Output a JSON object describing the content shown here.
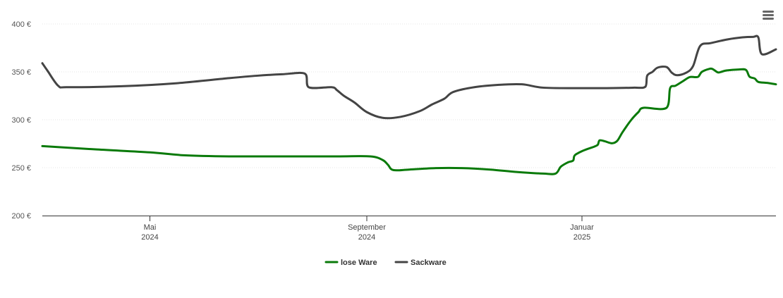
{
  "menu_icon": "hamburger-menu-icon",
  "chart_data": {
    "type": "line",
    "title": "",
    "xlabel": "",
    "ylabel": "",
    "currency": "€",
    "ylim": [
      200,
      400
    ],
    "yticks": [
      200,
      250,
      300,
      350,
      400
    ],
    "ytick_labels": [
      "200 €",
      "250 €",
      "300 €",
      "350 €",
      "400 €"
    ],
    "xlim": [
      "2024-03-01",
      "2025-04-21"
    ],
    "xticks": [
      {
        "date": "2024-05-01",
        "month": "Mai",
        "year": "2024"
      },
      {
        "date": "2024-09-01",
        "month": "September",
        "year": "2024"
      },
      {
        "date": "2025-01-01",
        "month": "Januar",
        "year": "2025"
      }
    ],
    "grid": true,
    "legend_position": "bottom",
    "series": [
      {
        "name": "lose Ware",
        "color": "#0a7a0a",
        "points": [
          [
            "2024-03-01",
            272.5
          ],
          [
            "2024-04-01",
            269
          ],
          [
            "2024-05-01",
            266
          ],
          [
            "2024-05-20",
            263
          ],
          [
            "2024-06-15",
            261.8
          ],
          [
            "2024-07-15",
            261.8
          ],
          [
            "2024-08-15",
            261.8
          ],
          [
            "2024-09-03",
            261.8
          ],
          [
            "2024-09-10",
            258
          ],
          [
            "2024-09-13",
            253
          ],
          [
            "2024-09-16",
            247.5
          ],
          [
            "2024-09-25",
            248
          ],
          [
            "2024-10-10",
            249.5
          ],
          [
            "2024-10-25",
            249.5
          ],
          [
            "2024-11-10",
            248
          ],
          [
            "2024-11-25",
            245.5
          ],
          [
            "2024-12-10",
            243.8
          ],
          [
            "2024-12-17",
            243.8
          ],
          [
            "2024-12-20",
            251
          ],
          [
            "2024-12-24",
            255.5
          ],
          [
            "2024-12-27",
            257.5
          ],
          [
            "2024-12-28",
            263
          ],
          [
            "2025-01-02",
            268
          ],
          [
            "2025-01-08",
            272
          ],
          [
            "2025-01-10",
            274
          ],
          [
            "2025-01-11",
            278.5
          ],
          [
            "2025-01-14",
            277.5
          ],
          [
            "2025-01-18",
            275.5
          ],
          [
            "2025-01-21",
            278
          ],
          [
            "2025-01-24",
            287
          ],
          [
            "2025-01-29",
            300
          ],
          [
            "2025-02-02",
            308
          ],
          [
            "2025-02-05",
            312.5
          ],
          [
            "2025-02-18",
            312.5
          ],
          [
            "2025-02-20",
            333
          ],
          [
            "2025-02-23",
            335.5
          ],
          [
            "2025-02-27",
            340
          ],
          [
            "2025-03-03",
            344.5
          ],
          [
            "2025-03-06",
            344.5
          ],
          [
            "2025-03-08",
            345
          ],
          [
            "2025-03-10",
            350
          ],
          [
            "2025-03-14",
            353
          ],
          [
            "2025-03-16",
            353
          ],
          [
            "2025-03-19",
            349.5
          ],
          [
            "2025-03-21",
            350
          ],
          [
            "2025-03-24",
            351.5
          ],
          [
            "2025-03-31",
            352.5
          ],
          [
            "2025-04-04",
            352
          ],
          [
            "2025-04-06",
            345
          ],
          [
            "2025-04-09",
            343
          ],
          [
            "2025-04-11",
            339.5
          ],
          [
            "2025-04-16",
            338.5
          ],
          [
            "2025-04-21",
            337
          ]
        ]
      },
      {
        "name": "Sackware",
        "color": "#444444",
        "points": [
          [
            "2024-03-01",
            359
          ],
          [
            "2024-03-04",
            351
          ],
          [
            "2024-03-10",
            335.5
          ],
          [
            "2024-03-15",
            334
          ],
          [
            "2024-04-15",
            335
          ],
          [
            "2024-05-15",
            338
          ],
          [
            "2024-06-15",
            343.5
          ],
          [
            "2024-07-01",
            346
          ],
          [
            "2024-07-15",
            347.5
          ],
          [
            "2024-07-28",
            348
          ],
          [
            "2024-07-30",
            334
          ],
          [
            "2024-08-12",
            334
          ],
          [
            "2024-08-15",
            331
          ],
          [
            "2024-08-19",
            325
          ],
          [
            "2024-08-25",
            318
          ],
          [
            "2024-09-01",
            308
          ],
          [
            "2024-09-10",
            302
          ],
          [
            "2024-09-20",
            303
          ],
          [
            "2024-10-01",
            309
          ],
          [
            "2024-10-08",
            316
          ],
          [
            "2024-10-15",
            322
          ],
          [
            "2024-10-20",
            329
          ],
          [
            "2024-11-01",
            334
          ],
          [
            "2024-11-15",
            336.5
          ],
          [
            "2024-11-28",
            337
          ],
          [
            "2024-12-10",
            333.5
          ],
          [
            "2024-12-30",
            333
          ],
          [
            "2025-01-15",
            333
          ],
          [
            "2025-01-30",
            333.5
          ],
          [
            "2025-02-06",
            334.5
          ],
          [
            "2025-02-07",
            346
          ],
          [
            "2025-02-10",
            350
          ],
          [
            "2025-02-13",
            354.5
          ],
          [
            "2025-02-18",
            355
          ],
          [
            "2025-02-21",
            349
          ],
          [
            "2025-02-24",
            346.5
          ],
          [
            "2025-03-01",
            349
          ],
          [
            "2025-03-05",
            356
          ],
          [
            "2025-03-09",
            377
          ],
          [
            "2025-03-15",
            380
          ],
          [
            "2025-03-25",
            384
          ],
          [
            "2025-04-02",
            386
          ],
          [
            "2025-04-08",
            386.5
          ],
          [
            "2025-04-11",
            386
          ],
          [
            "2025-04-13",
            368.5
          ],
          [
            "2025-04-21",
            373.5
          ]
        ]
      }
    ]
  }
}
